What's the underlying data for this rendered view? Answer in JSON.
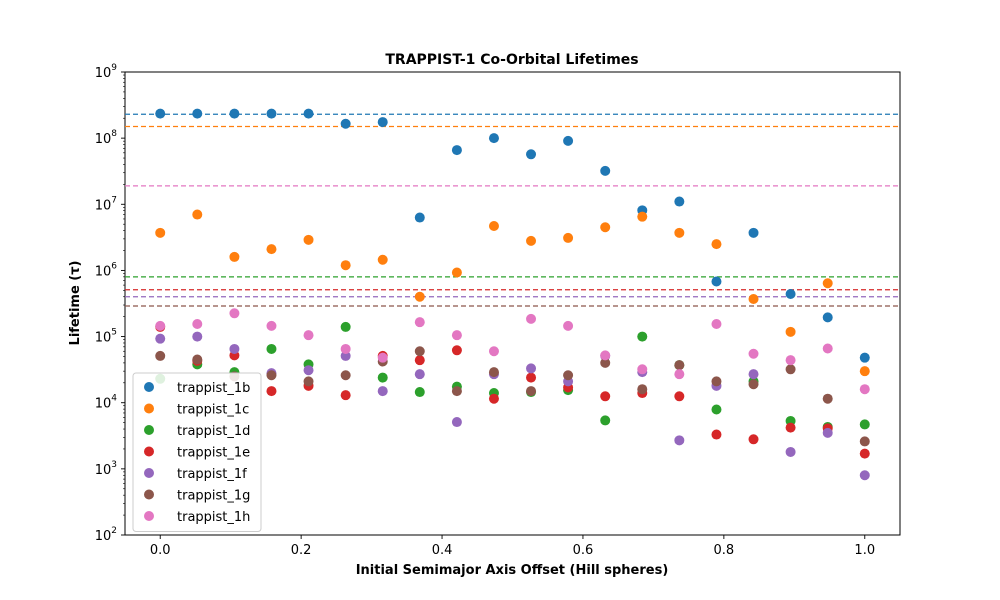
{
  "chart_data": {
    "type": "scatter",
    "title": "TRAPPIST-1 Co-Orbital Lifetimes",
    "xlabel": "Initial Semimajor Axis Offset (Hill spheres)",
    "ylabel": "Lifetime (τ)",
    "xlim": [
      -0.05,
      1.05
    ],
    "ylim": [
      100,
      1000000000
    ],
    "yscale": "log",
    "grid": false,
    "legend_position": "lower-left",
    "x_ticks": [
      {
        "value": 0.0,
        "label": "0.0"
      },
      {
        "value": 0.2,
        "label": "0.2"
      },
      {
        "value": 0.4,
        "label": "0.4"
      },
      {
        "value": 0.6,
        "label": "0.6"
      },
      {
        "value": 0.8,
        "label": "0.8"
      },
      {
        "value": 1.0,
        "label": "1.0"
      }
    ],
    "y_ticks": [
      {
        "value": 100,
        "base": "10",
        "exp": "2"
      },
      {
        "value": 1000,
        "base": "10",
        "exp": "3"
      },
      {
        "value": 10000,
        "base": "10",
        "exp": "4"
      },
      {
        "value": 100000,
        "base": "10",
        "exp": "5"
      },
      {
        "value": 1000000,
        "base": "10",
        "exp": "6"
      },
      {
        "value": 10000000,
        "base": "10",
        "exp": "7"
      },
      {
        "value": 100000000,
        "base": "10",
        "exp": "8"
      },
      {
        "value": 1000000000,
        "base": "10",
        "exp": "9"
      }
    ],
    "x": [
      0.0,
      0.0526,
      0.1053,
      0.1579,
      0.2105,
      0.2632,
      0.3158,
      0.3684,
      0.4211,
      0.4737,
      0.5263,
      0.5789,
      0.6316,
      0.6842,
      0.7368,
      0.7895,
      0.8421,
      0.8947,
      0.9474,
      1.0
    ],
    "series": [
      {
        "name": "trappist_1b",
        "color": "#1f77b4",
        "reference": 230000000,
        "values": [
          235000000,
          235000000,
          235000000,
          235000000,
          235000000,
          165000000,
          175000000,
          6300000,
          66000000,
          100000000,
          57000000,
          91000000,
          32000000,
          8100000,
          11000000,
          680000,
          3700000,
          440000,
          195000,
          48000
        ]
      },
      {
        "name": "trappist_1c",
        "color": "#ff7f0e",
        "reference": 150000000,
        "values": [
          3700000,
          7000000,
          1600000,
          2100000,
          2900000,
          1200000,
          1450000,
          400000,
          930000,
          4700000,
          2800000,
          3100000,
          4500000,
          6500000,
          3700000,
          2500000,
          370000,
          118000,
          640000,
          30000
        ]
      },
      {
        "name": "trappist_1d",
        "color": "#2ca02c",
        "reference": 800000,
        "values": [
          23000,
          38000,
          29000,
          65000,
          38000,
          140000,
          24000,
          14500,
          17500,
          14000,
          14500,
          15500,
          5400,
          100000,
          37000,
          7900,
          21000,
          5300,
          4300,
          4700
        ]
      },
      {
        "name": "trappist_1e",
        "color": "#d62728",
        "reference": 510000,
        "values": [
          140000,
          43000,
          52000,
          15000,
          18000,
          13000,
          51000,
          44000,
          62000,
          11500,
          24000,
          17000,
          12500,
          14000,
          12500,
          3300,
          2800,
          4200,
          4100,
          1700
        ]
      },
      {
        "name": "trappist_1f",
        "color": "#9467bd",
        "reference": 400000,
        "values": [
          93000,
          100000,
          65000,
          28000,
          31000,
          51000,
          15000,
          27000,
          5100,
          27000,
          33000,
          21000,
          51000,
          29000,
          2700,
          18000,
          27000,
          1800,
          3500,
          800
        ]
      },
      {
        "name": "trappist_1g",
        "color": "#8c564b",
        "reference": 290000,
        "values": [
          51000,
          45000,
          25000,
          26000,
          21000,
          26000,
          42000,
          60000,
          15000,
          29000,
          15000,
          26000,
          40000,
          16000,
          37000,
          21000,
          19000,
          32000,
          11500,
          2600
        ]
      },
      {
        "name": "trappist_1h",
        "color": "#e377c2",
        "reference": 19000000,
        "values": [
          145000,
          155000,
          225000,
          145000,
          105000,
          65000,
          48000,
          165000,
          105000,
          60000,
          185000,
          145000,
          52000,
          32000,
          27000,
          155000,
          55000,
          44000,
          66000,
          16000
        ]
      }
    ]
  }
}
